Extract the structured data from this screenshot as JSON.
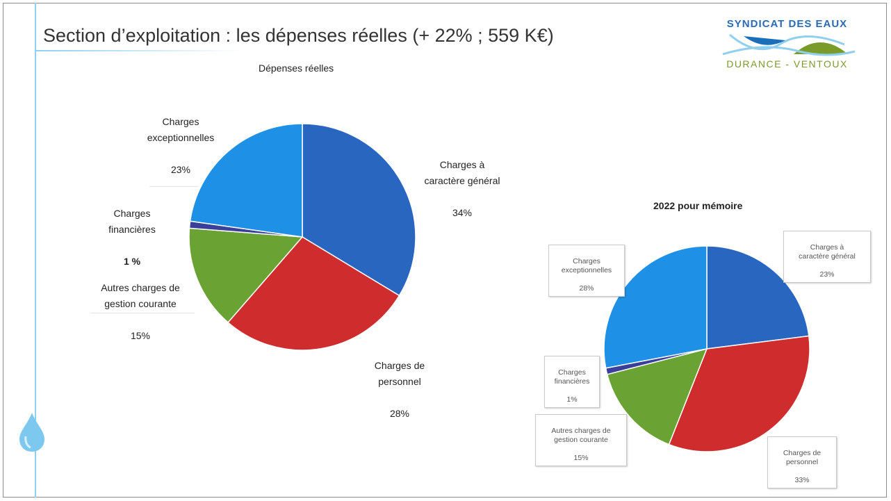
{
  "slide": {
    "title": "Section d’exploitation : les dépenses  réelles (+ 22% ; 559 K€)"
  },
  "logo": {
    "line1": "SYNDICAT DES EAUX",
    "line2": "DURANCE - VENTOUX",
    "colors": {
      "blue": "#1a6fb8",
      "green": "#7a9a2a",
      "lightblue": "#8fd0ee"
    }
  },
  "icons": {
    "drop": "water-drop-icon"
  },
  "chart_data": [
    {
      "type": "pie",
      "title": "Dépenses réelles",
      "categories": [
        "Charges à caractère général",
        "Charges de personnel",
        "Autres charges de gestion courante",
        "Charges financières",
        "Charges exceptionnelles"
      ],
      "values": [
        34,
        28,
        15,
        1,
        23
      ],
      "colors": [
        "#2966c0",
        "#cf2d2d",
        "#6aa233",
        "#3a3f9a",
        "#1e90e6"
      ],
      "labels": [
        {
          "name": "Charges à\ncaractère général",
          "value": "34%"
        },
        {
          "name": "Charges de\npersonnel",
          "value": "28%"
        },
        {
          "name": "Autres charges de\ngestion courante",
          "value": "15%"
        },
        {
          "name": "Charges\nfinancières",
          "value": "1 %"
        },
        {
          "name": "Charges\nexceptionnelles",
          "value": "23%"
        }
      ]
    },
    {
      "type": "pie",
      "title": "2022 pour mémoire",
      "categories": [
        "Charges à caractère général",
        "Charges de personnel",
        "Autres charges de gestion courante",
        "Charges financières",
        "Charges exceptionnelles"
      ],
      "values": [
        23,
        33,
        15,
        1,
        28
      ],
      "colors": [
        "#2966c0",
        "#cf2d2d",
        "#6aa233",
        "#3a3f9a",
        "#1e90e6"
      ],
      "labels": [
        {
          "name": "Charges à\ncaractère général",
          "value": "23%"
        },
        {
          "name": "Charges de\npersonnel",
          "value": "33%"
        },
        {
          "name": "Autres charges de\ngestion courante",
          "value": "15%"
        },
        {
          "name": "Charges\nfinancières",
          "value": "1%"
        },
        {
          "name": "Charges\nexceptionnelles",
          "value": "28%"
        }
      ]
    }
  ]
}
